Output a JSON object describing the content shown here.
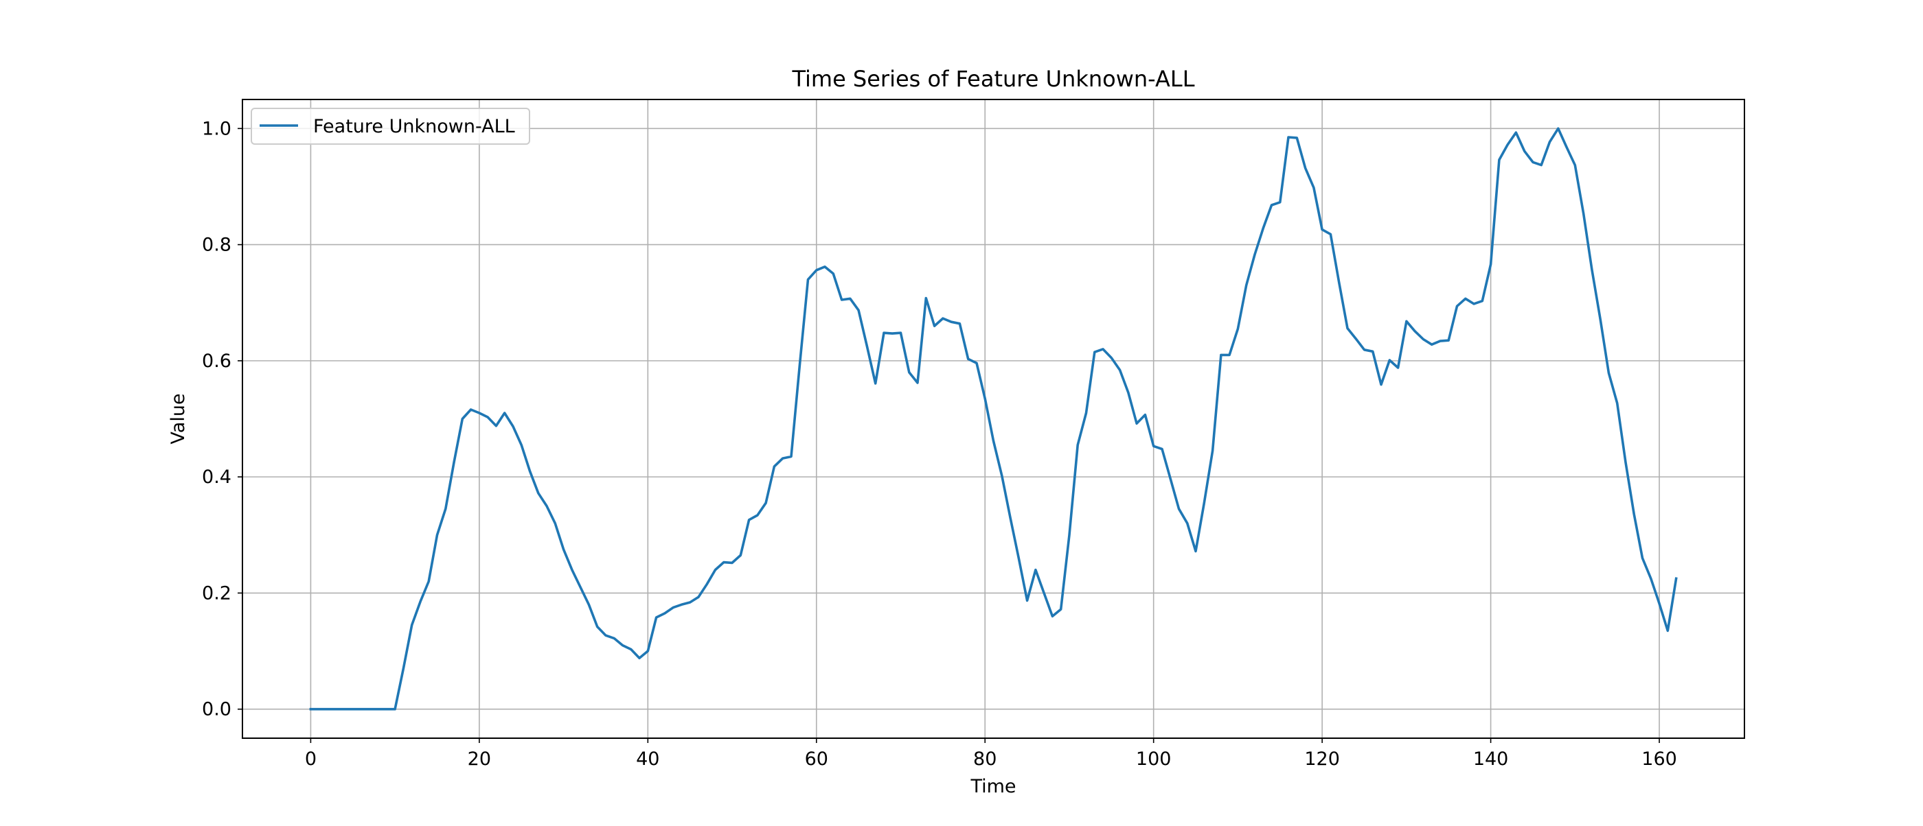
{
  "chart_data": {
    "type": "line",
    "title": "Time Series of Feature Unknown-ALL",
    "xlabel": "Time",
    "ylabel": "Value",
    "xlim": [
      -8.1,
      170.1
    ],
    "ylim": [
      -0.05,
      1.05
    ],
    "xticks": [
      0,
      20,
      40,
      60,
      80,
      100,
      120,
      140,
      160
    ],
    "xtick_labels": [
      "0",
      "20",
      "40",
      "60",
      "80",
      "100",
      "120",
      "140",
      "160"
    ],
    "yticks": [
      0.0,
      0.2,
      0.4,
      0.6,
      0.8,
      1.0
    ],
    "ytick_labels": [
      "0.0",
      "0.2",
      "0.4",
      "0.6",
      "0.8",
      "1.0"
    ],
    "grid": true,
    "legend_position": "upper-left",
    "series": [
      {
        "name": "Feature Unknown-ALL",
        "color": "#1f77b4",
        "values": [
          0,
          0,
          0,
          0,
          0,
          0,
          0,
          0,
          0,
          0,
          0,
          0.07,
          0.145,
          0.185,
          0.22,
          0.3,
          0.345,
          0.425,
          0.5,
          0.516,
          0.51,
          0.503,
          0.488,
          0.51,
          0.487,
          0.455,
          0.41,
          0.372,
          0.35,
          0.32,
          0.275,
          0.24,
          0.21,
          0.18,
          0.142,
          0.127,
          0.122,
          0.11,
          0.103,
          0.088,
          0.1,
          0.158,
          0.165,
          0.175,
          0.18,
          0.184,
          0.193,
          0.215,
          0.24,
          0.253,
          0.252,
          0.265,
          0.326,
          0.334,
          0.355,
          0.418,
          0.432,
          0.435,
          0.59,
          0.74,
          0.756,
          0.762,
          0.75,
          0.705,
          0.707,
          0.687,
          0.625,
          0.561,
          0.648,
          0.647,
          0.648,
          0.58,
          0.562,
          0.708,
          0.66,
          0.673,
          0.667,
          0.664,
          0.603,
          0.596,
          0.535,
          0.462,
          0.402,
          0.33,
          0.26,
          0.187,
          0.24,
          0.2,
          0.16,
          0.172,
          0.3,
          0.455,
          0.51,
          0.615,
          0.62,
          0.605,
          0.584,
          0.545,
          0.492,
          0.507,
          0.453,
          0.448,
          0.397,
          0.345,
          0.32,
          0.272,
          0.355,
          0.445,
          0.61,
          0.61,
          0.655,
          0.73,
          0.783,
          0.828,
          0.868,
          0.873,
          0.985,
          0.984,
          0.932,
          0.898,
          0.826,
          0.818,
          0.735,
          0.656,
          0.638,
          0.619,
          0.616,
          0.559,
          0.601,
          0.588,
          0.668,
          0.651,
          0.637,
          0.628,
          0.634,
          0.635,
          0.694,
          0.707,
          0.698,
          0.703,
          0.766,
          0.946,
          0.972,
          0.993,
          0.961,
          0.942,
          0.937,
          0.977,
          1.0,
          0.968,
          0.937,
          0.854,
          0.757,
          0.672,
          0.579,
          0.527,
          0.425,
          0.336,
          0.26,
          0.225,
          0.182,
          0.135,
          0.225
        ]
      }
    ]
  }
}
